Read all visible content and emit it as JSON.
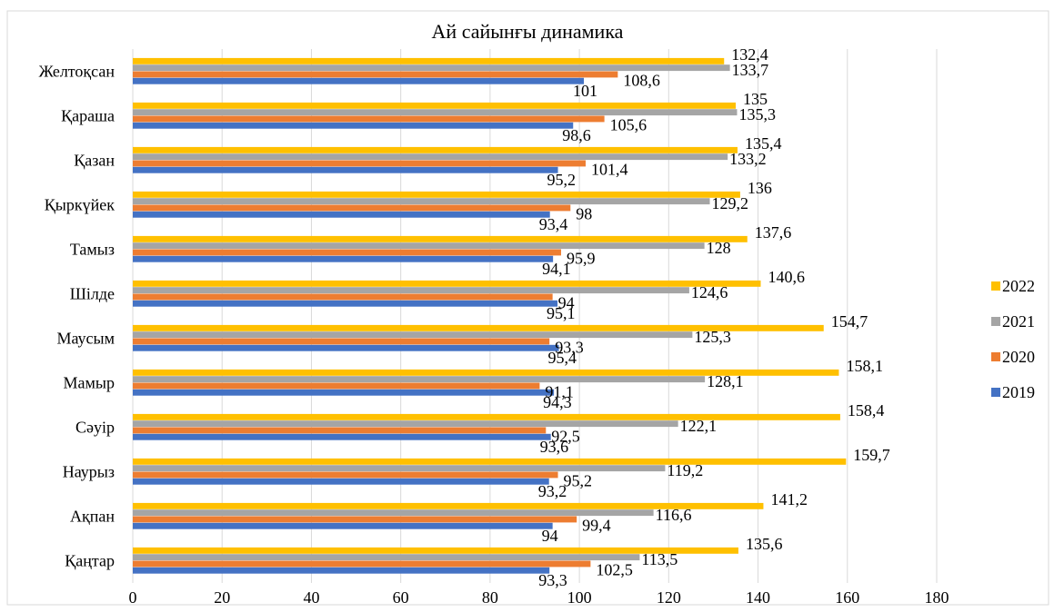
{
  "chart_data": {
    "type": "bar",
    "orientation": "horizontal",
    "title": "Ай сайынғы динамика",
    "xlabel": "",
    "ylabel": "",
    "xlim": [
      0,
      180
    ],
    "x_ticks": [
      "0",
      "20",
      "40",
      "60",
      "80",
      "100",
      "120",
      "140",
      "160",
      "180"
    ],
    "grid": "vertical",
    "legend_position": "right",
    "categories": [
      "Қаңтар",
      "Ақпан",
      "Наурыз",
      "Сәуір",
      "Мамыр",
      "Маусым",
      "Шілде",
      "Тамыз",
      "Қыркүйек",
      "Қазан",
      "Қараша",
      "Желтоқсан"
    ],
    "series": [
      {
        "name": "2019",
        "color": "#4472C4",
        "values": [
          93.3,
          94,
          93.2,
          93.6,
          94.3,
          95.4,
          95.1,
          94.1,
          93.4,
          95.2,
          98.6,
          101
        ],
        "labels": [
          "93,3",
          "94",
          "93,2",
          "93,6",
          "94,3",
          "95,4",
          "95,1",
          "94,1",
          "93,4",
          "95,2",
          "98,6",
          "101"
        ]
      },
      {
        "name": "2020",
        "color": "#ED7D31",
        "values": [
          102.5,
          99.4,
          95.2,
          92.5,
          91.1,
          93.3,
          94,
          95.9,
          98,
          101.4,
          105.6,
          108.6
        ],
        "labels": [
          "102,5",
          "99,4",
          "95,2",
          "92,5",
          "91,1",
          "93,3",
          "94",
          "95,9",
          "98",
          "101,4",
          "105,6",
          "108,6"
        ]
      },
      {
        "name": "2021",
        "color": "#A5A5A5",
        "values": [
          113.5,
          116.6,
          119.2,
          122.1,
          128.1,
          125.3,
          124.6,
          128,
          129.2,
          133.2,
          135.3,
          133.7
        ],
        "labels": [
          "113,5",
          "116,6",
          "119,2",
          "122,1",
          "128,1",
          "125,3",
          "124,6",
          "128",
          "129,2",
          "133,2",
          "135,3",
          "133,7"
        ]
      },
      {
        "name": "2022",
        "color": "#FFC000",
        "values": [
          135.6,
          141.2,
          159.7,
          158.4,
          158.1,
          154.7,
          140.6,
          137.6,
          136,
          135.4,
          135,
          132.4
        ],
        "labels": [
          "135,6",
          "141,2",
          "159,7",
          "158,4",
          "158,1",
          "154,7",
          "140,6",
          "137,6",
          "136",
          "135,4",
          "135",
          "132,4"
        ]
      }
    ]
  }
}
